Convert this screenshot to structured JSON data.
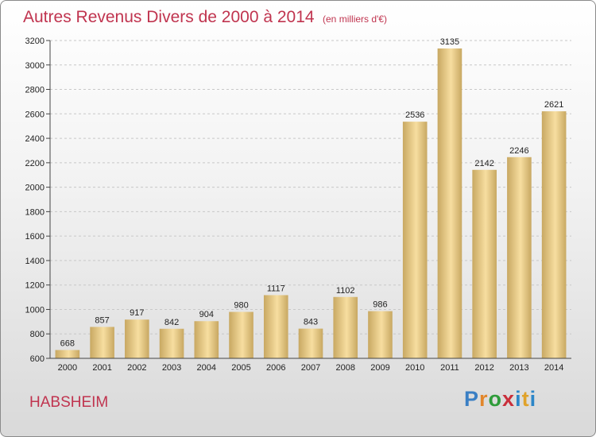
{
  "page": {
    "title": "Autres Revenus Divers de 2000 à 2014",
    "subtitle": "(en milliers d'€)",
    "city": "HABSHEIM",
    "brand": "Proxiti"
  },
  "colors": {
    "title": "#c0344f",
    "bar_light": "#f7dea0",
    "bar_dark": "#c8a862",
    "grid": "#c8c8c8"
  },
  "chart_data": {
    "type": "bar",
    "title": "Autres Revenus Divers de 2000 à 2014",
    "subtitle": "(en milliers d'€)",
    "xlabel": "",
    "ylabel": "",
    "categories": [
      "2000",
      "2001",
      "2002",
      "2003",
      "2004",
      "2005",
      "2006",
      "2007",
      "2008",
      "2009",
      "2010",
      "2011",
      "2012",
      "2013",
      "2014"
    ],
    "values": [
      668,
      857,
      917,
      842,
      904,
      980,
      1117,
      843,
      1102,
      986,
      2536,
      3135,
      2142,
      2246,
      2621
    ],
    "ylim": [
      600,
      3200
    ],
    "yticks": [
      600,
      800,
      1000,
      1200,
      1400,
      1600,
      1800,
      2000,
      2200,
      2400,
      2600,
      2800,
      3000,
      3200
    ],
    "grid": true,
    "legend": "none"
  }
}
